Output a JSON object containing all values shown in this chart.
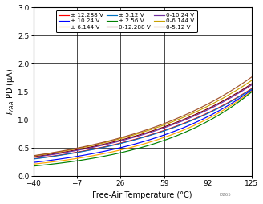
{
  "xlabel": "Free-Air Temperature (°C)",
  "ylabel": "Iᴠᴀᴀ PD (μA)",
  "xlim": [
    -40,
    125
  ],
  "ylim": [
    0,
    3
  ],
  "xticks": [
    -40,
    -7,
    26,
    59,
    92,
    125
  ],
  "yticks": [
    0,
    0.5,
    1.0,
    1.5,
    2.0,
    2.5,
    3.0
  ],
  "series": [
    {
      "label": "± 12.288 V",
      "color": "#ff0000",
      "v_at_n40": 0.305,
      "v_at_125": 1.555
    },
    {
      "label": "± 10.24 V",
      "color": "#0000ff",
      "v_at_n40": 0.24,
      "v_at_125": 1.53
    },
    {
      "label": "± 6.144 V",
      "color": "#ffa500",
      "v_at_n40": 0.21,
      "v_at_125": 1.51
    },
    {
      "label": "± 5.12 V",
      "color": "#0070c0",
      "v_at_n40": 0.3,
      "v_at_125": 1.545
    },
    {
      "label": "± 2.56 V",
      "color": "#008000",
      "v_at_n40": 0.175,
      "v_at_125": 1.495
    },
    {
      "label": "0-12.288 V",
      "color": "#800000",
      "v_at_n40": 0.34,
      "v_at_125": 1.64
    },
    {
      "label": "0-10.24 V",
      "color": "#7030a0",
      "v_at_n40": 0.33,
      "v_at_125": 1.62
    },
    {
      "label": "0-6.144 V",
      "color": "#c8a000",
      "v_at_n40": 0.355,
      "v_at_125": 1.7
    },
    {
      "label": "0-5.12 V",
      "color": "#a0522d",
      "v_at_n40": 0.36,
      "v_at_125": 1.76
    }
  ],
  "legend_cols": 3,
  "figsize": [
    3.28,
    2.54
  ],
  "dpi": 100,
  "note": "D265"
}
